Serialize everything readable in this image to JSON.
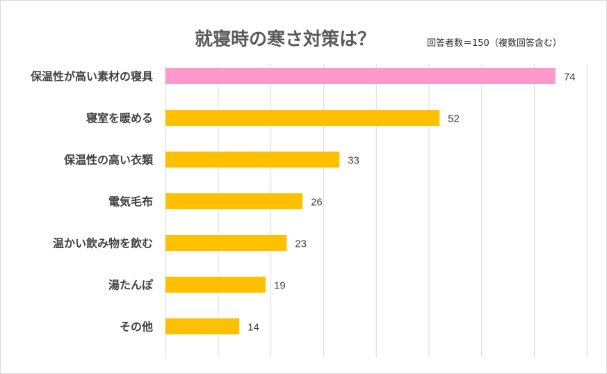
{
  "chart_data": {
    "type": "bar",
    "orientation": "horizontal",
    "title": "就寝時の寒さ対策は？",
    "note": "回答者数＝150（複数回答含む）",
    "categories": [
      "保温性が高い素材の寝具",
      "寝室を暖める",
      "保温性の高い衣類",
      "電気毛布",
      "温かい飲み物を飲む",
      "湯たんぽ",
      "その他"
    ],
    "values": [
      74,
      52,
      33,
      26,
      23,
      19,
      14
    ],
    "xlim": [
      0,
      80
    ],
    "grid": true,
    "legend": false,
    "colors": {
      "highlight": "#ff99cc",
      "default": "#ffc000",
      "grid": "#d9d9d9"
    }
  }
}
